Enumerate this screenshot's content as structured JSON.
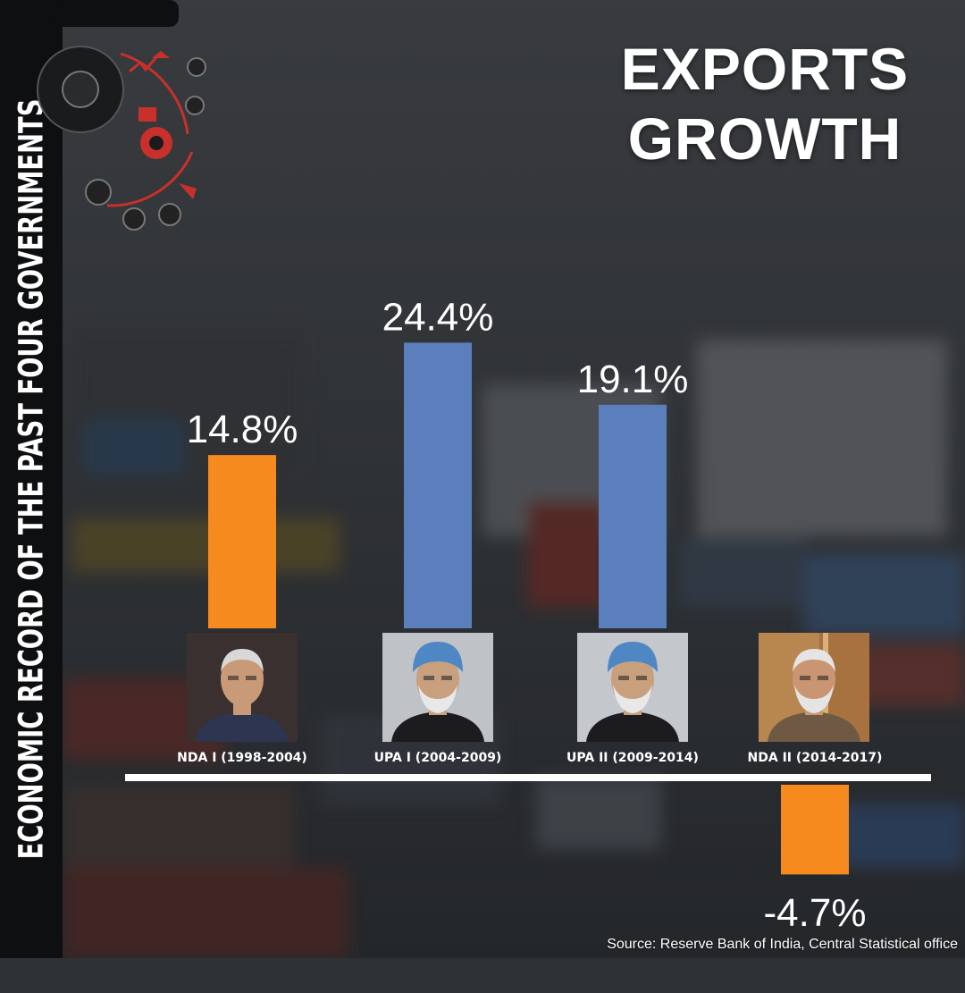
{
  "side_banner": "ECONOMIC RECORD OF THE PAST FOUR GOVERNMENTS",
  "title_line1": "EXPORTS",
  "title_line2": "GROWTH",
  "source": "Source: Reserve Bank of India, Central Statistical office",
  "colors": {
    "nda": "#f68a1f",
    "upa": "#5b7fbc",
    "baseline": "#ffffff",
    "label": "#ffffff"
  },
  "portraits": [
    {
      "icon": "portrait-atal-bihari-vajpayee"
    },
    {
      "icon": "portrait-manmohan-singh"
    },
    {
      "icon": "portrait-manmohan-singh"
    },
    {
      "icon": "portrait-narendra-modi"
    }
  ],
  "chart_data": {
    "type": "bar",
    "title": "EXPORTS GROWTH",
    "categories": [
      "NDA I (1998-2004)",
      "UPA I (2004-2009)",
      "UPA II (2009-2014)",
      "NDA II (2014-2017)"
    ],
    "values": [
      14.8,
      24.4,
      19.1,
      -4.7
    ],
    "value_labels": [
      "14.8%",
      "24.4%",
      "19.1%",
      "-4.7%"
    ],
    "bar_colors": [
      "#f68a1f",
      "#5b7fbc",
      "#5b7fbc",
      "#f68a1f"
    ],
    "unit": "%",
    "xlabel": "",
    "ylabel": "",
    "grid": false,
    "legend": "none"
  }
}
